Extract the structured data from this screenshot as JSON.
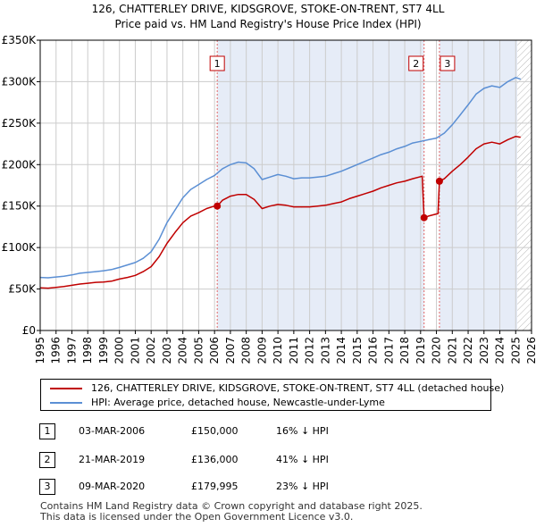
{
  "chart_data": {
    "type": "line",
    "title": "126, CHATTERLEY DRIVE, KIDSGROVE, STOKE-ON-TRENT, ST7 4LL",
    "subtitle": "Price paid vs. HM Land Registry's House Price Index (HPI)",
    "xlim": [
      1995,
      2026
    ],
    "ylim": [
      0,
      350000
    ],
    "x_ticks": [
      "1995",
      "1996",
      "1997",
      "1998",
      "1999",
      "2000",
      "2001",
      "2002",
      "2003",
      "2004",
      "2005",
      "2006",
      "2007",
      "2008",
      "2009",
      "2010",
      "2011",
      "2012",
      "2013",
      "2014",
      "2015",
      "2016",
      "2017",
      "2018",
      "2019",
      "2020",
      "2021",
      "2022",
      "2023",
      "2024",
      "2025",
      "2026"
    ],
    "y_ticks": [
      {
        "value": 0,
        "label": "£0"
      },
      {
        "value": 50000,
        "label": "£50K"
      },
      {
        "value": 100000,
        "label": "£100K"
      },
      {
        "value": 150000,
        "label": "£150K"
      },
      {
        "value": 200000,
        "label": "£200K"
      },
      {
        "value": 250000,
        "label": "£250K"
      },
      {
        "value": 300000,
        "label": "£300K"
      },
      {
        "value": 350000,
        "label": "£350K"
      }
    ],
    "forecast_from": 2025.1,
    "shaded_ranges": [
      [
        2006.17,
        2019.22
      ],
      [
        2020.19,
        2025.1
      ]
    ],
    "series": [
      {
        "name": "HPI: Average price, detached house, Newcastle-under-Lyme",
        "color": "#5b8fd4",
        "x": [
          1995,
          1995.5,
          1996,
          1996.5,
          1997,
          1997.5,
          1998,
          1998.5,
          1999,
          1999.5,
          2000,
          2000.5,
          2001,
          2001.5,
          2002,
          2002.5,
          2003,
          2003.5,
          2004,
          2004.5,
          2005,
          2005.5,
          2006,
          2006.5,
          2007,
          2007.5,
          2008,
          2008.5,
          2009,
          2009.5,
          2010,
          2010.5,
          2011,
          2011.5,
          2012,
          2012.5,
          2013,
          2013.5,
          2014,
          2014.5,
          2015,
          2015.5,
          2016,
          2016.5,
          2017,
          2017.5,
          2018,
          2018.5,
          2019,
          2019.5,
          2020,
          2020.5,
          2021,
          2021.5,
          2022,
          2022.5,
          2023,
          2023.5,
          2024,
          2024.5,
          2025,
          2025.3
        ],
        "y": [
          64000,
          63500,
          64500,
          65500,
          67000,
          69000,
          70000,
          71000,
          72000,
          73500,
          76000,
          79000,
          82000,
          87000,
          95000,
          110000,
          130000,
          145000,
          160000,
          170000,
          176000,
          182000,
          187000,
          195000,
          200000,
          203000,
          202000,
          195000,
          182000,
          185000,
          188000,
          186000,
          183000,
          184000,
          184000,
          185000,
          186000,
          189000,
          192000,
          196000,
          200000,
          204000,
          208000,
          212000,
          215000,
          219000,
          222000,
          226000,
          228000,
          230000,
          232000,
          238000,
          248000,
          260000,
          272000,
          285000,
          292000,
          295000,
          293000,
          300000,
          305000,
          303000
        ]
      },
      {
        "name": "126, CHATTERLEY DRIVE, KIDSGROVE, STOKE-ON-TRENT, ST7 4LL (detached house)",
        "color": "#c00000",
        "x": [
          1995,
          1995.5,
          1996,
          1996.5,
          1997,
          1997.5,
          1998,
          1998.5,
          1999,
          1999.5,
          2000,
          2000.5,
          2001,
          2001.5,
          2002,
          2002.5,
          2003,
          2003.5,
          2004,
          2004.5,
          2005,
          2005.5,
          2006,
          2006.17,
          2006.5,
          2007,
          2007.5,
          2008,
          2008.5,
          2009,
          2009.5,
          2010,
          2010.5,
          2011,
          2011.5,
          2012,
          2012.5,
          2013,
          2013.5,
          2014,
          2014.5,
          2015,
          2015.5,
          2016,
          2016.5,
          2017,
          2017.5,
          2018,
          2018.5,
          2019.1,
          2019.22,
          2019.5,
          2019.9,
          2020.1,
          2020.19,
          2020.5,
          2021,
          2021.5,
          2022,
          2022.5,
          2023,
          2023.5,
          2024,
          2024.5,
          2025,
          2025.3
        ],
        "y": [
          51500,
          51000,
          52000,
          53000,
          54500,
          56000,
          57000,
          58000,
          58500,
          59500,
          62000,
          64000,
          66500,
          71000,
          77000,
          89000,
          105000,
          118000,
          130000,
          138000,
          142000,
          147000,
          150000,
          150000,
          157000,
          162000,
          164000,
          164000,
          158000,
          147000,
          150000,
          152000,
          151000,
          149000,
          149000,
          149000,
          150000,
          151000,
          153000,
          155000,
          159000,
          162000,
          165000,
          168000,
          172000,
          175000,
          178000,
          180000,
          183000,
          186000,
          136000,
          138000,
          140000,
          141000,
          179995,
          183000,
          192000,
          200000,
          209000,
          219000,
          225000,
          227000,
          225000,
          230000,
          234000,
          233000
        ]
      }
    ],
    "sales": [
      {
        "num": "1",
        "x": 2006.17,
        "y": 150000,
        "date": "03-MAR-2006",
        "price": "£150,000",
        "hpi": "16% ↓ HPI"
      },
      {
        "num": "2",
        "x": 2019.22,
        "y": 136000,
        "date": "21-MAR-2019",
        "price": "£136,000",
        "hpi": "41% ↓ HPI"
      },
      {
        "num": "3",
        "x": 2020.19,
        "y": 179995,
        "date": "09-MAR-2020",
        "price": "£179,995",
        "hpi": "23% ↓ HPI"
      }
    ]
  },
  "legend": {
    "property_label": "126, CHATTERLEY DRIVE, KIDSGROVE, STOKE-ON-TRENT, ST7 4LL (detached house)",
    "hpi_label": "HPI: Average price, detached house, Newcastle-under-Lyme",
    "property_color": "#c00000",
    "hpi_color": "#5b8fd4"
  },
  "footer": {
    "line1": "Contains HM Land Registry data © Crown copyright and database right 2025.",
    "line2": "This data is licensed under the Open Government Licence v3.0."
  }
}
